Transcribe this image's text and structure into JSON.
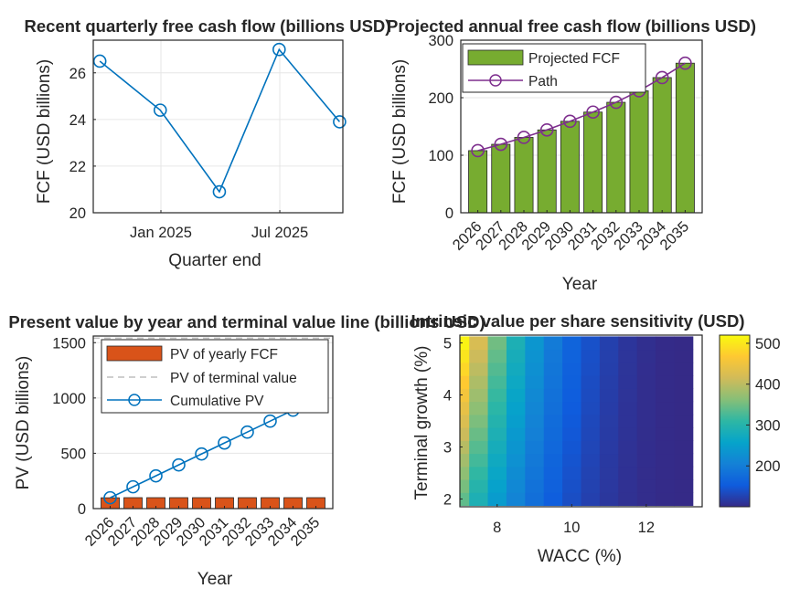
{
  "colors": {
    "line_blue": "#0072BD",
    "bar_green": "#77AC30",
    "path_purple": "#7E2F8E",
    "bar_orange": "#D95319",
    "terminal_gray": "#BFBFBF",
    "grid": "#E6E6E6"
  },
  "chart_data": [
    {
      "type": "line",
      "title": "Recent quarterly free cash flow (billions USD)",
      "xlabel": "Quarter end",
      "ylabel": "FCF (USD billions)",
      "x_tick_labels": [
        "Jan 2025",
        "Jul 2025"
      ],
      "ylim": [
        20,
        27.4
      ],
      "y_ticks": [
        20,
        22,
        24,
        26
      ],
      "x": [
        "2024-09-30",
        "2024-12-31",
        "2025-03-31",
        "2025-06-30",
        "2025-09-30"
      ],
      "values": [
        26.5,
        24.4,
        20.9,
        27.0,
        23.9
      ],
      "grid": true,
      "marker": "circle"
    },
    {
      "type": "bar",
      "title": "Projected annual free cash flow (billions USD)",
      "xlabel": "Year",
      "ylabel": "FCF (USD billions)",
      "categories": [
        "2026",
        "2027",
        "2028",
        "2029",
        "2030",
        "2031",
        "2032",
        "2033",
        "2034",
        "2035"
      ],
      "ylim": [
        0,
        300
      ],
      "y_ticks": [
        0,
        100,
        200,
        300
      ],
      "series": [
        {
          "name": "Projected FCF",
          "type": "bar",
          "values": [
            108,
            119,
            131,
            144,
            159,
            175,
            192,
            212,
            235,
            260
          ]
        },
        {
          "name": "Path",
          "type": "line",
          "values": [
            108,
            119,
            131,
            144,
            159,
            175,
            192,
            212,
            235,
            260
          ]
        }
      ],
      "legend": "top-left",
      "grid": true
    },
    {
      "type": "bar",
      "title": "Present value by year and terminal value line (billions USD)",
      "xlabel": "Year",
      "ylabel": "PV (USD billions)",
      "categories": [
        "2026",
        "2027",
        "2028",
        "2029",
        "2030",
        "2031",
        "2032",
        "2033",
        "2034",
        "2035"
      ],
      "ylim": [
        0,
        1560
      ],
      "y_ticks": [
        0,
        500,
        1000,
        1500
      ],
      "series": [
        {
          "name": "PV of yearly FCF",
          "type": "bar",
          "values": [
            98,
            99,
            99,
            99,
            99,
            99,
            99,
            99,
            99,
            99
          ]
        },
        {
          "name": "PV of terminal value",
          "type": "hline",
          "value": 1540
        },
        {
          "name": "Cumulative PV",
          "type": "line",
          "values": [
            98,
            197,
            296,
            395,
            494,
            593,
            692,
            791,
            890,
            989
          ]
        }
      ],
      "legend": "top-center",
      "grid": true
    },
    {
      "type": "heatmap",
      "title": "Intrinsic value per share sensitivity (USD)",
      "xlabel": "WACC (%)",
      "ylabel": "Terminal growth (%)",
      "x_range": [
        7,
        13.5
      ],
      "x_ticks": [
        8,
        10,
        12
      ],
      "y_range": [
        1.85,
        5.15
      ],
      "y_ticks": [
        2,
        3,
        4,
        5
      ],
      "x_values": [
        7.0,
        7.5,
        8.0,
        8.5,
        9.0,
        9.5,
        10.0,
        10.5,
        11.0,
        11.5,
        12.0,
        12.5,
        13.0
      ],
      "y_values": [
        2.0,
        2.25,
        2.5,
        2.75,
        3.0,
        3.25,
        3.5,
        3.75,
        4.0,
        4.25,
        4.5,
        4.75,
        5.0
      ],
      "colorbar": {
        "min": 100,
        "max": 520,
        "ticks": [
          200,
          300,
          400,
          500
        ],
        "colormap": "parula"
      },
      "value_formula": "value = 100 + 420 * ((13.5 - wacc) / 6.5)^3 * (0.55 + 0.45 * (growth - 1.85) / 3.3)"
    }
  ]
}
